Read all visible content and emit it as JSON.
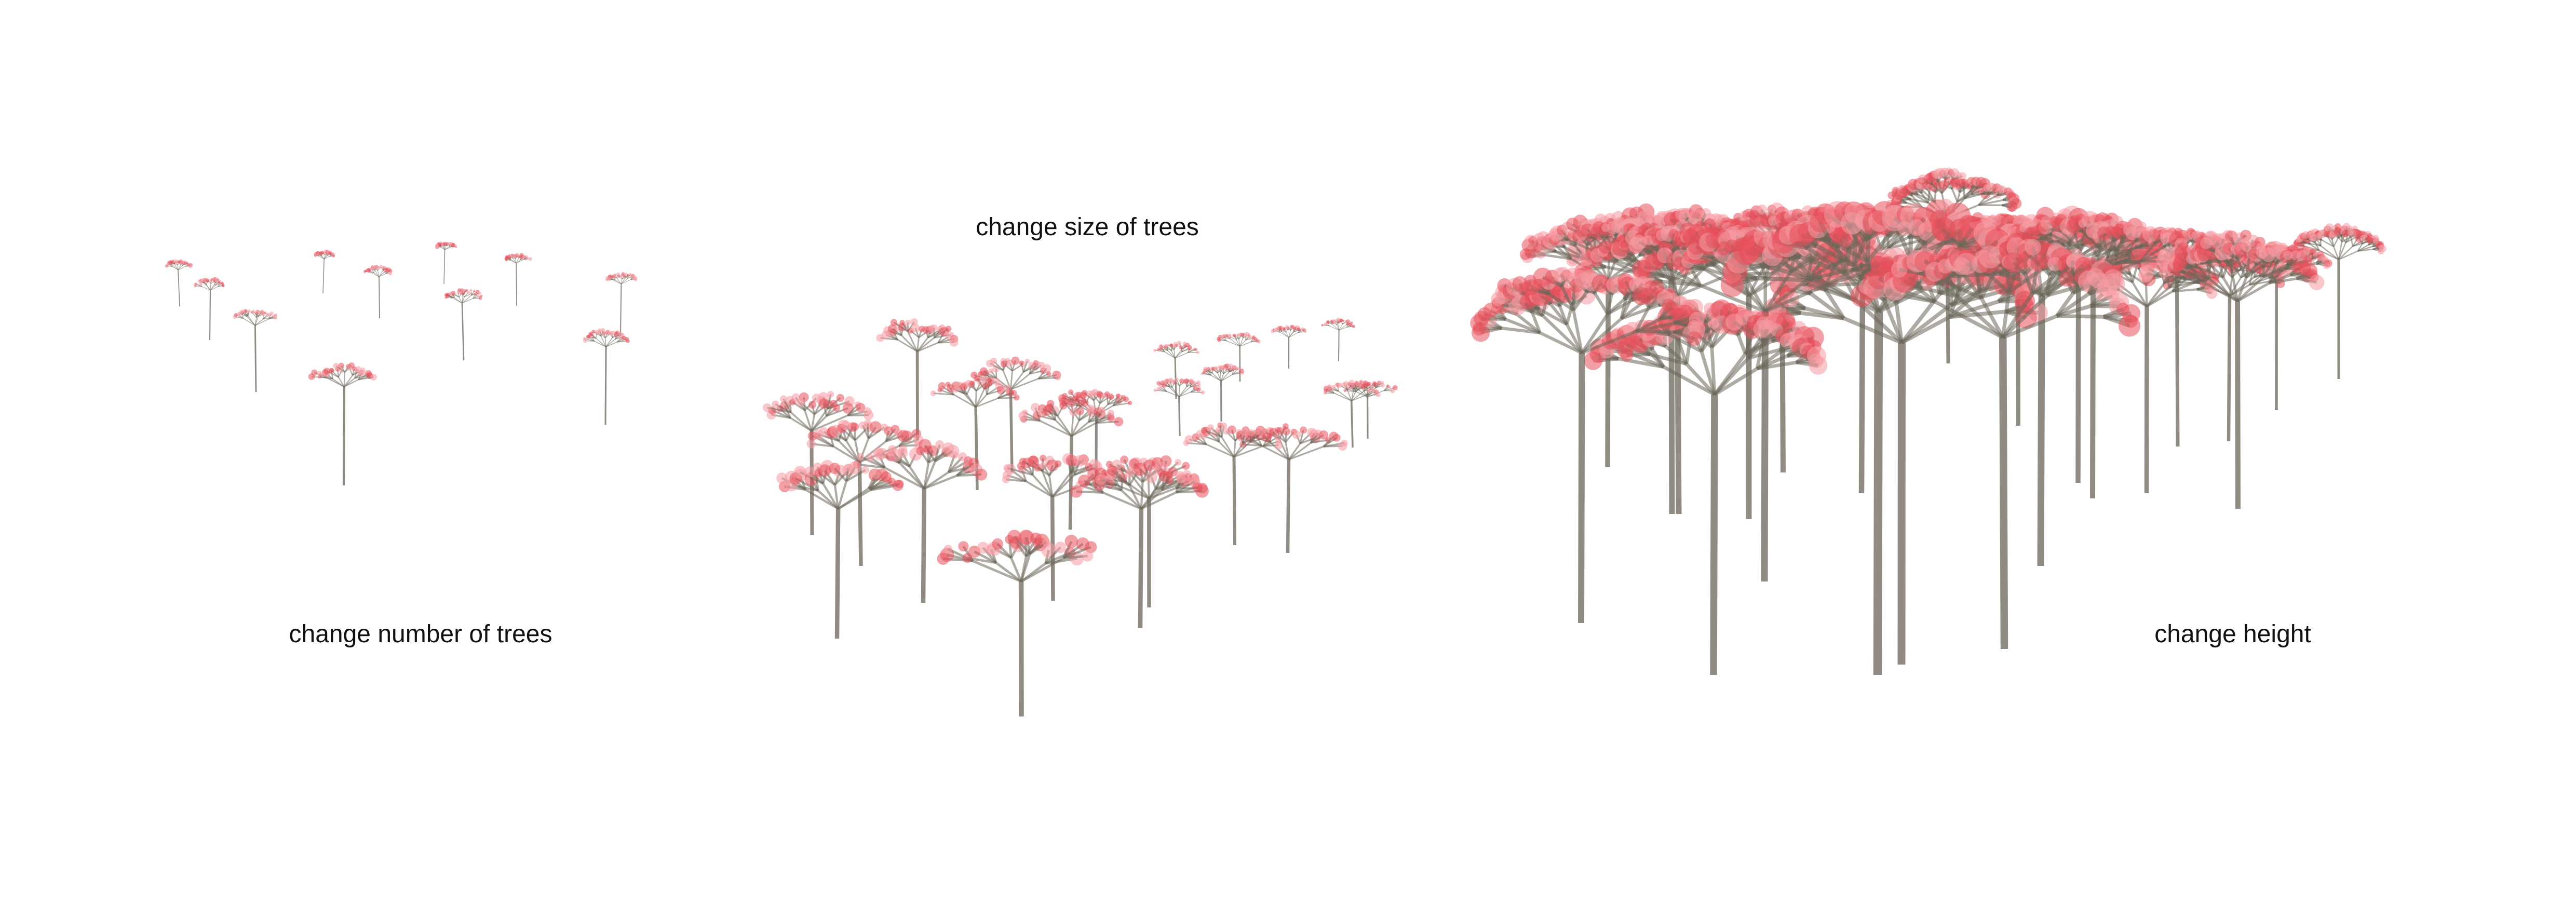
{
  "captions": {
    "count": "change number of trees",
    "size": "change size of trees",
    "height": "change height"
  },
  "colors": {
    "background": "#ffffff",
    "branch": "#6b6659",
    "blossom": "#e8505b",
    "blossom_light": "#f59aa2"
  },
  "panels": [
    {
      "name": "change-number-of-trees",
      "tree_count": 11
    },
    {
      "name": "change-size-of-trees",
      "tree_count": 23
    },
    {
      "name": "change-height",
      "tree_count": 23
    }
  ]
}
